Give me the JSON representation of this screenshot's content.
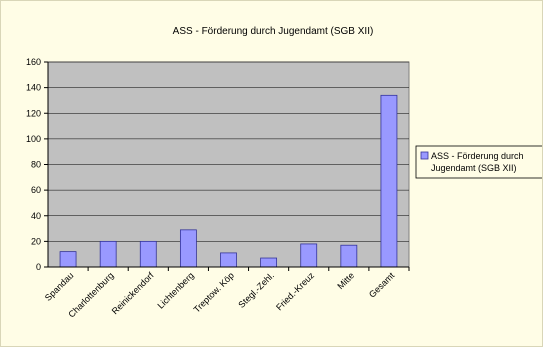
{
  "chart_data": {
    "type": "bar",
    "title": "ASS - Förderung durch Jugendamt (SGB XII)",
    "xlabel": "",
    "ylabel": "",
    "ylim": [
      0,
      160
    ],
    "yticks": [
      0,
      20,
      40,
      60,
      80,
      100,
      120,
      140,
      160
    ],
    "categories": [
      "Spandau",
      "Charlottenburg",
      "Reinickendorf",
      "Lichtenberg",
      "Treptow. Köp",
      "Stegl.-Zehl.",
      "Fried.-Kreuz",
      "Mitte",
      "Gesamt"
    ],
    "series": [
      {
        "name": "ASS - Förderung durch Jugendamt (SGB XII)",
        "values": [
          12,
          20,
          20,
          29,
          11,
          7,
          18,
          17,
          134
        ]
      }
    ],
    "legend": {
      "position": "right",
      "lines": [
        "ASS - Förderung durch",
        "Jugendamt (SGB XII)"
      ]
    },
    "grid": true,
    "colors": {
      "bar_fill": "#9999ff",
      "bar_stroke": "#333399",
      "plot_bg": "#c0c0c0",
      "gridline": "#000000",
      "page_bg": "#fffde6"
    }
  }
}
